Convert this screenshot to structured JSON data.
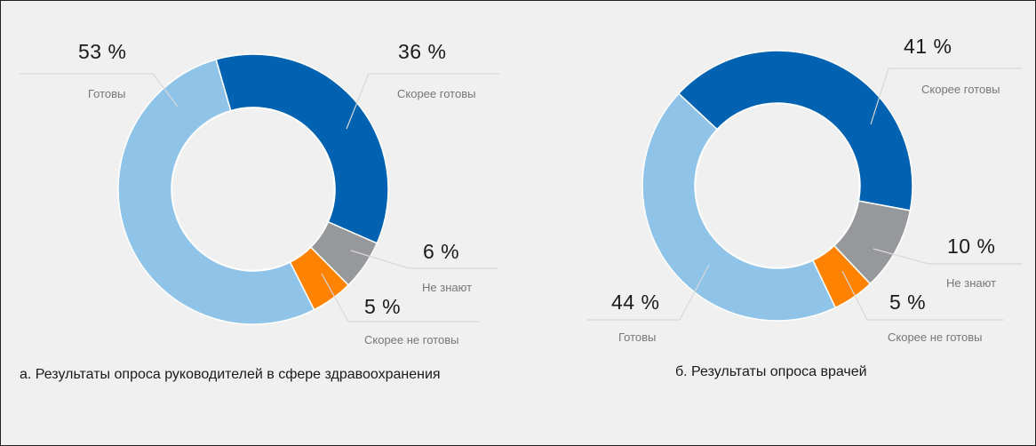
{
  "chart_data": [
    {
      "type": "pie",
      "subtype": "donut",
      "title": "а. Результаты опроса руководителей в сфере здравоохранения",
      "slices": [
        {
          "label": "Скорее готовы",
          "value": 36,
          "display": "36 %",
          "color": "#0062b1"
        },
        {
          "label": "Не знают",
          "value": 6,
          "display": "6 %",
          "color": "#97989b"
        },
        {
          "label": "Скорее не готовы",
          "value": 5,
          "display": "5 %",
          "color": "#ff8200"
        },
        {
          "label": "Готовы",
          "value": 53,
          "display": "53 %",
          "color": "#8fc3e8"
        }
      ]
    },
    {
      "type": "pie",
      "subtype": "donut",
      "title": "б. Результаты опроса врачей",
      "slices": [
        {
          "label": "Скорее готовы",
          "value": 41,
          "display": "41 %",
          "color": "#0062b1"
        },
        {
          "label": "Не знают",
          "value": 10,
          "display": "10 %",
          "color": "#97989b"
        },
        {
          "label": "Скорее не готовы",
          "value": 5,
          "display": "5 %",
          "color": "#ff8200"
        },
        {
          "label": "Готовы",
          "value": 44,
          "display": "44 %",
          "color": "#8fc3e8"
        }
      ]
    }
  ]
}
